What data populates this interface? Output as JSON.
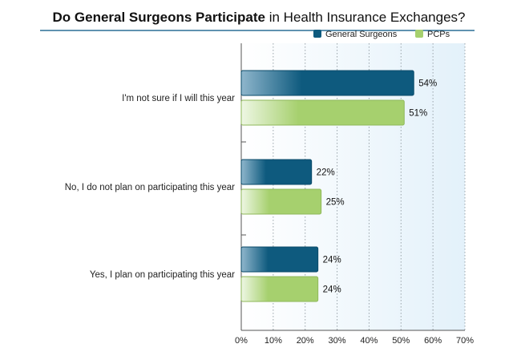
{
  "chart_data": {
    "type": "bar",
    "orientation": "horizontal",
    "title_bold": "Do General Surgeons Participate",
    "title_rest": " in Health Insurance Exchanges?",
    "categories": [
      "I'm not sure if I will this year",
      "No, I do not plan on participating this year",
      "Yes, I plan on participating this year"
    ],
    "series": [
      {
        "name": "General Surgeons",
        "values": [
          54,
          22,
          24
        ],
        "labels": [
          "54%",
          "22%",
          "24%"
        ],
        "color": "#0e5a7e"
      },
      {
        "name": "PCPs",
        "values": [
          51,
          25,
          24
        ],
        "labels": [
          "51%",
          "25%",
          "24%"
        ],
        "color": "#a6d06e"
      }
    ],
    "xlim": [
      0,
      70
    ],
    "ticks": [
      0,
      10,
      20,
      30,
      40,
      50,
      60,
      70
    ],
    "tick_labels": [
      "0%",
      "10%",
      "20%",
      "30%",
      "40%",
      "50%",
      "60%",
      "70%"
    ],
    "grid": true,
    "legend_position": "top-right",
    "title_rule_color": "#2a6f96"
  }
}
